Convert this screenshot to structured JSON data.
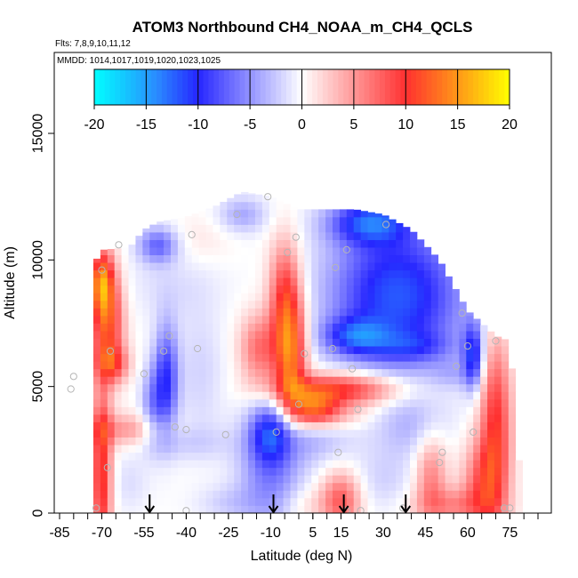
{
  "chart_data": {
    "type": "heatmap",
    "title": "ATOM3 Northbound CH4_NOAA_m_CH4_QCLS",
    "flights_label": "Flts: 7,8,9,10,11,12",
    "dates_label": "MMDD: 1014,1017,1019,1020,1023,1025",
    "xlabel": "Latitude (deg N)",
    "ylabel": "Altitude (m)",
    "xlim": [
      -85,
      85
    ],
    "ylim": [
      0,
      17500
    ],
    "x_ticks": [
      -85,
      -70,
      -55,
      -40,
      -25,
      -10,
      5,
      15,
      30,
      45,
      60,
      75
    ],
    "x_tick_labels": [
      "-85",
      "-70",
      "-55",
      "-40",
      "-25",
      "-10",
      "5",
      "15",
      "30",
      "45",
      "60",
      "75"
    ],
    "y_ticks": [
      0,
      5000,
      10000,
      15000
    ],
    "y_tick_labels": [
      "0",
      "5000",
      "10000",
      "15000"
    ],
    "colorbar": {
      "min": -20,
      "max": 20,
      "ticks": [
        -20,
        -15,
        -10,
        -5,
        0,
        5,
        10,
        15,
        20
      ],
      "tick_labels": [
        "-20",
        "-15",
        "-10",
        "-5",
        "0",
        "5",
        "10",
        "15",
        "20"
      ],
      "colors": [
        "#00ffff",
        "#2a8bff",
        "#2626ff",
        "#ffffff",
        "#ff3030",
        "#ffff00"
      ],
      "color_positions": [
        -20,
        -14,
        -10,
        0,
        10,
        20
      ]
    },
    "arrows_x": [
      -53,
      -9,
      16,
      38
    ],
    "field": {
      "x_min": -73,
      "x_max": 79,
      "x_step": 2.5,
      "y_min": 0,
      "y_max": 12700,
      "y_step": 300,
      "envelope_top": [
        [
          -73,
          9800
        ],
        [
          -70,
          10400
        ],
        [
          -60,
          10500
        ],
        [
          -55,
          11200
        ],
        [
          -50,
          11500
        ],
        [
          -40,
          11700
        ],
        [
          -30,
          12100
        ],
        [
          -20,
          12700
        ],
        [
          -10,
          12500
        ],
        [
          0,
          12000
        ],
        [
          10,
          12000
        ],
        [
          20,
          12000
        ],
        [
          30,
          11800
        ],
        [
          40,
          11200
        ],
        [
          50,
          10000
        ],
        [
          60,
          8000
        ],
        [
          70,
          7000
        ],
        [
          75,
          6800
        ],
        [
          79,
          1000
        ]
      ],
      "features": [
        {
          "lat": -68,
          "alt": 7500,
          "slat": 4,
          "salt": 1400,
          "value": 11
        },
        {
          "lat": -70,
          "alt": 9200,
          "slat": 3,
          "salt": 900,
          "value": 12
        },
        {
          "lat": -66,
          "alt": 5900,
          "slat": 4,
          "salt": 500,
          "value": 7
        },
        {
          "lat": -70,
          "alt": 1500,
          "slat": 2.5,
          "salt": 2500,
          "value": 11
        },
        {
          "lat": -62,
          "alt": 3300,
          "slat": 10,
          "salt": 450,
          "value": 5
        },
        {
          "lat": -60,
          "alt": 1200,
          "slat": 5,
          "salt": 800,
          "value": -1.5
        },
        {
          "lat": -52,
          "alt": 4300,
          "slat": 3,
          "salt": 1100,
          "value": -5
        },
        {
          "lat": -47,
          "alt": 5300,
          "slat": 3,
          "salt": 1500,
          "value": -9
        },
        {
          "lat": -40,
          "alt": 2800,
          "slat": 12,
          "salt": 500,
          "value": -2
        },
        {
          "lat": -45,
          "alt": 9000,
          "slat": 12,
          "salt": 1000,
          "value": -1.5
        },
        {
          "lat": -35,
          "alt": 5500,
          "slat": 6,
          "salt": 1800,
          "value": -2
        },
        {
          "lat": -35,
          "alt": 10800,
          "slat": 8,
          "salt": 700,
          "value": 1.2
        },
        {
          "lat": -50,
          "alt": 10600,
          "slat": 5,
          "salt": 500,
          "value": -7
        },
        {
          "lat": -20,
          "alt": 11800,
          "slat": 6,
          "salt": 500,
          "value": -4
        },
        {
          "lat": -3,
          "alt": 6300,
          "slat": 4,
          "salt": 1600,
          "value": 13
        },
        {
          "lat": -5,
          "alt": 8800,
          "slat": 4,
          "salt": 1500,
          "value": 8
        },
        {
          "lat": -14,
          "alt": 6500,
          "slat": 5,
          "salt": 1000,
          "value": 7
        },
        {
          "lat": 15,
          "alt": 4900,
          "slat": 15,
          "salt": 450,
          "value": 11
        },
        {
          "lat": 5,
          "alt": 4200,
          "slat": 6,
          "salt": 500,
          "value": 9
        },
        {
          "lat": 10,
          "alt": 3900,
          "slat": 10,
          "salt": 400,
          "value": 4
        },
        {
          "lat": 35,
          "alt": 8600,
          "slat": 17,
          "salt": 2100,
          "value": -12
        },
        {
          "lat": 25,
          "alt": 11500,
          "slat": 10,
          "salt": 600,
          "value": -10
        },
        {
          "lat": 20,
          "alt": 7000,
          "slat": 8,
          "salt": 500,
          "value": -8
        },
        {
          "lat": 62,
          "alt": 6200,
          "slat": 2.5,
          "salt": 900,
          "value": -10
        },
        {
          "lat": 55,
          "alt": 5500,
          "slat": 5,
          "salt": 400,
          "value": -2
        },
        {
          "lat": 70,
          "alt": 3500,
          "slat": 4,
          "salt": 2600,
          "value": 10
        },
        {
          "lat": 65,
          "alt": 1200,
          "slat": 5,
          "salt": 1200,
          "value": 7
        },
        {
          "lat": 55,
          "alt": 300,
          "slat": 10,
          "salt": 500,
          "value": 5
        },
        {
          "lat": 40,
          "alt": 3400,
          "slat": 9,
          "salt": 900,
          "value": -3
        },
        {
          "lat": 30,
          "alt": 1300,
          "slat": 8,
          "salt": 900,
          "value": -2
        },
        {
          "lat": -10,
          "alt": 1700,
          "slat": 8,
          "salt": 1700,
          "value": -6
        },
        {
          "lat": -10,
          "alt": 3200,
          "slat": 5,
          "salt": 800,
          "value": -8
        },
        {
          "lat": 5,
          "alt": 2900,
          "slat": 10,
          "salt": 700,
          "value": -3
        },
        {
          "lat": 15,
          "alt": 500,
          "slat": 5,
          "salt": 800,
          "value": 8
        },
        {
          "lat": 2,
          "alt": 300,
          "slat": 6,
          "salt": 500,
          "value": 2
        },
        {
          "lat": -25,
          "alt": 400,
          "slat": 8,
          "salt": 500,
          "value": -2
        },
        {
          "lat": 47,
          "alt": 1500,
          "slat": 4,
          "salt": 1200,
          "value": 6
        },
        {
          "lat": 40,
          "alt": 6600,
          "slat": 10,
          "salt": 400,
          "value": -4
        }
      ]
    },
    "sample_points": [
      {
        "lat": -72,
        "alt": 200
      },
      {
        "lat": -68,
        "alt": 1800
      },
      {
        "lat": -67,
        "alt": 6400
      },
      {
        "lat": -70,
        "alt": 9600
      },
      {
        "lat": -64,
        "alt": 10600
      },
      {
        "lat": -55,
        "alt": 5500
      },
      {
        "lat": -48,
        "alt": 6400
      },
      {
        "lat": -46,
        "alt": 7000
      },
      {
        "lat": -44,
        "alt": 3400
      },
      {
        "lat": -40,
        "alt": 3300
      },
      {
        "lat": -36,
        "alt": 6500
      },
      {
        "lat": -38,
        "alt": 11000
      },
      {
        "lat": -26,
        "alt": 3100
      },
      {
        "lat": -22,
        "alt": 11800
      },
      {
        "lat": -11,
        "alt": 12500
      },
      {
        "lat": -8,
        "alt": 3200
      },
      {
        "lat": -4,
        "alt": 10300
      },
      {
        "lat": -1,
        "alt": 10900
      },
      {
        "lat": 2,
        "alt": 6300
      },
      {
        "lat": 0,
        "alt": 4300
      },
      {
        "lat": 13,
        "alt": 9700
      },
      {
        "lat": 12,
        "alt": 6500
      },
      {
        "lat": 14,
        "alt": 2400
      },
      {
        "lat": 17,
        "alt": 10400
      },
      {
        "lat": 19,
        "alt": 5700
      },
      {
        "lat": 21,
        "alt": 4100
      },
      {
        "lat": 31,
        "alt": 11400
      },
      {
        "lat": 37,
        "alt": 200
      },
      {
        "lat": 50,
        "alt": 2000
      },
      {
        "lat": 51,
        "alt": 2400
      },
      {
        "lat": 56,
        "alt": 5800
      },
      {
        "lat": 58,
        "alt": 7900
      },
      {
        "lat": 60,
        "alt": 6600
      },
      {
        "lat": 62,
        "alt": 3200
      },
      {
        "lat": 70,
        "alt": 6800
      },
      {
        "lat": 73,
        "alt": 200
      },
      {
        "lat": 75,
        "alt": 200
      },
      {
        "lat": 17,
        "alt": 100
      },
      {
        "lat": 22,
        "alt": 100
      },
      {
        "lat": -40,
        "alt": 100
      },
      {
        "lat": -80,
        "alt": 5400
      },
      {
        "lat": -81,
        "alt": 4900
      }
    ]
  }
}
